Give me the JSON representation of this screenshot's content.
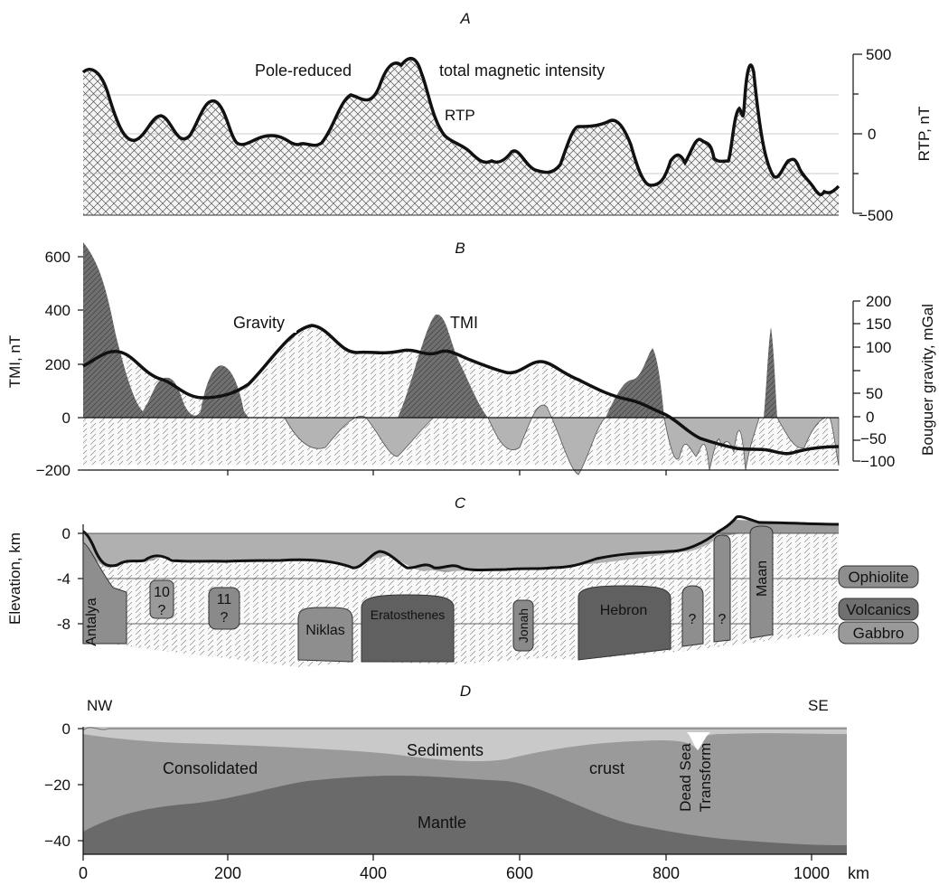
{
  "panels": {
    "a": {
      "letter": "A",
      "title_left": "Pole-reduced",
      "title_right": "total magnetic intensity",
      "curve_label": "RTP",
      "right_axis_label": "RTP, nT",
      "right_ticks": [
        "500",
        "0",
        "−500"
      ]
    },
    "b": {
      "letter": "B",
      "gravity_label": "Gravity",
      "tmi_label": "TMI",
      "left_axis_label": "TMI, nT",
      "right_axis_label": "Bouguer gravity, mGal",
      "left_ticks": [
        "600",
        "400",
        "200",
        "0",
        "−200"
      ],
      "right_ticks": [
        "200",
        "150",
        "100",
        "50",
        "0",
        "−50",
        "−100"
      ]
    },
    "c": {
      "letter": "C",
      "left_axis_label": "Elevation, km",
      "left_ticks": [
        "0",
        "-4",
        "-8"
      ],
      "bodies": {
        "antalya": "Antalya",
        "b10": "10",
        "b11": "11",
        "q": "?",
        "niklas": "Niklas",
        "eratosthenes": "Eratosthenes",
        "jonah": "Jonah",
        "hebron": "Hebron",
        "maan": "Maan"
      },
      "legend": [
        "Ophiolite",
        "Volcanics",
        "Gabbro"
      ]
    },
    "d": {
      "letter": "D",
      "nw": "NW",
      "se": "SE",
      "sediments": "Sediments",
      "consolidated": "Consolidated",
      "crust": "crust",
      "mantle": "Mantle",
      "dead_sea": "Dead Sea",
      "transform": "Transform",
      "left_ticks": [
        "0",
        "−20",
        "−40"
      ],
      "x_ticks": [
        "0",
        "200",
        "400",
        "600",
        "800",
        "1000"
      ],
      "x_unit": "km"
    }
  },
  "colors": {
    "rtp_fill": "#e6e6e6",
    "tmi_dark": "#6b6b6b",
    "tmi_light": "#b4b4b4",
    "gravity_line": "#111111",
    "sediment": "#c9c9c9",
    "crust": "#9a9a9a",
    "mantle": "#6a6a6a",
    "body_dark": "#606060",
    "body_mid": "#8e8e8e"
  }
}
